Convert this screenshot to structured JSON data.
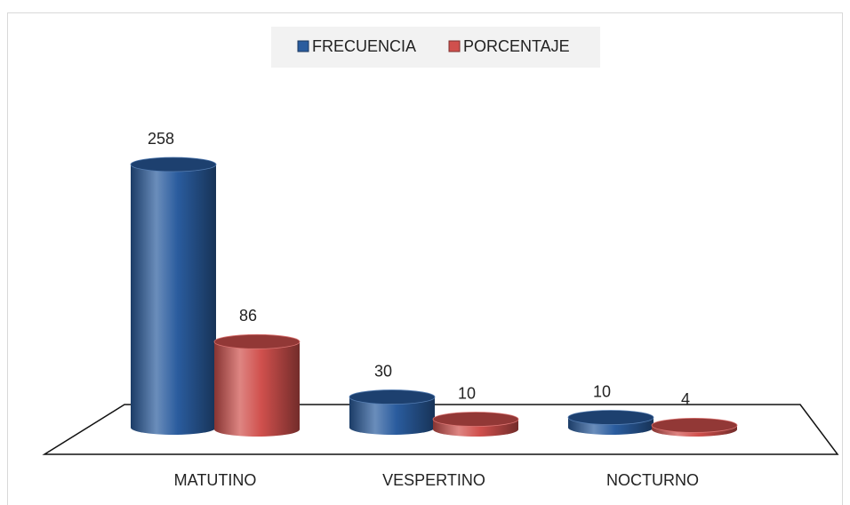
{
  "chart_data": {
    "type": "bar3d",
    "categories": [
      "MATUTINO",
      "VESPERTINO",
      "NOCTURNO"
    ],
    "series": [
      {
        "name": "FRECUENCIA",
        "color": "#2a5c9e",
        "values": [
          258,
          30,
          10
        ]
      },
      {
        "name": "PORCENTAJE",
        "color": "#d0504d",
        "values": [
          86,
          10,
          4
        ]
      }
    ],
    "legend": "top"
  }
}
